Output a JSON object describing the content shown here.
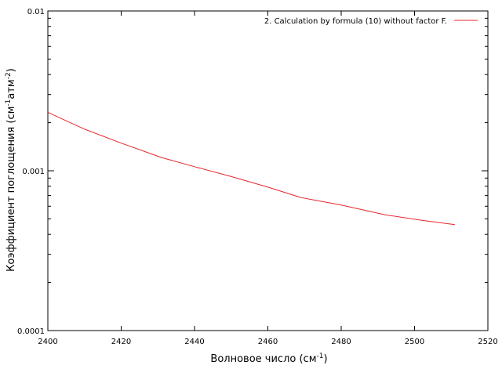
{
  "chart_data": {
    "type": "line",
    "title": "",
    "xlabel": "Волновое число (см",
    "xlabel_sup": "-1",
    "xlabel_close": ")",
    "ylabel": "Коэффициент поглощения (см",
    "ylabel_sup1": "-1",
    "ylabel_mid": "атм",
    "ylabel_sup2": "-2",
    "ylabel_close": ")",
    "xlim": [
      2400,
      2520
    ],
    "ylim": [
      0.0001,
      0.01
    ],
    "yscale": "log",
    "grid": false,
    "legend_position": "top-right",
    "x_ticks": [
      2400,
      2420,
      2440,
      2460,
      2480,
      2500,
      2520
    ],
    "x_tick_labels": [
      "2400",
      "2420",
      "2440",
      "2460",
      "2480",
      "2500",
      "2520"
    ],
    "y_ticks": [
      0.0001,
      0.001,
      0.01
    ],
    "y_tick_labels": [
      "0.0001",
      "0.001",
      "0.01"
    ],
    "series": [
      {
        "name": "2. Calculation by formula (10) without factor F.",
        "color": "#e8262b",
        "x": [
          2400,
          2410,
          2420,
          2431,
          2440,
          2450,
          2460,
          2469,
          2480,
          2492,
          2502,
          2511
        ],
        "y": [
          0.00232,
          0.00182,
          0.00149,
          0.00121,
          0.00106,
          0.00092,
          0.00079,
          0.00068,
          0.00061,
          0.00053,
          0.00049,
          0.00046
        ]
      }
    ]
  }
}
